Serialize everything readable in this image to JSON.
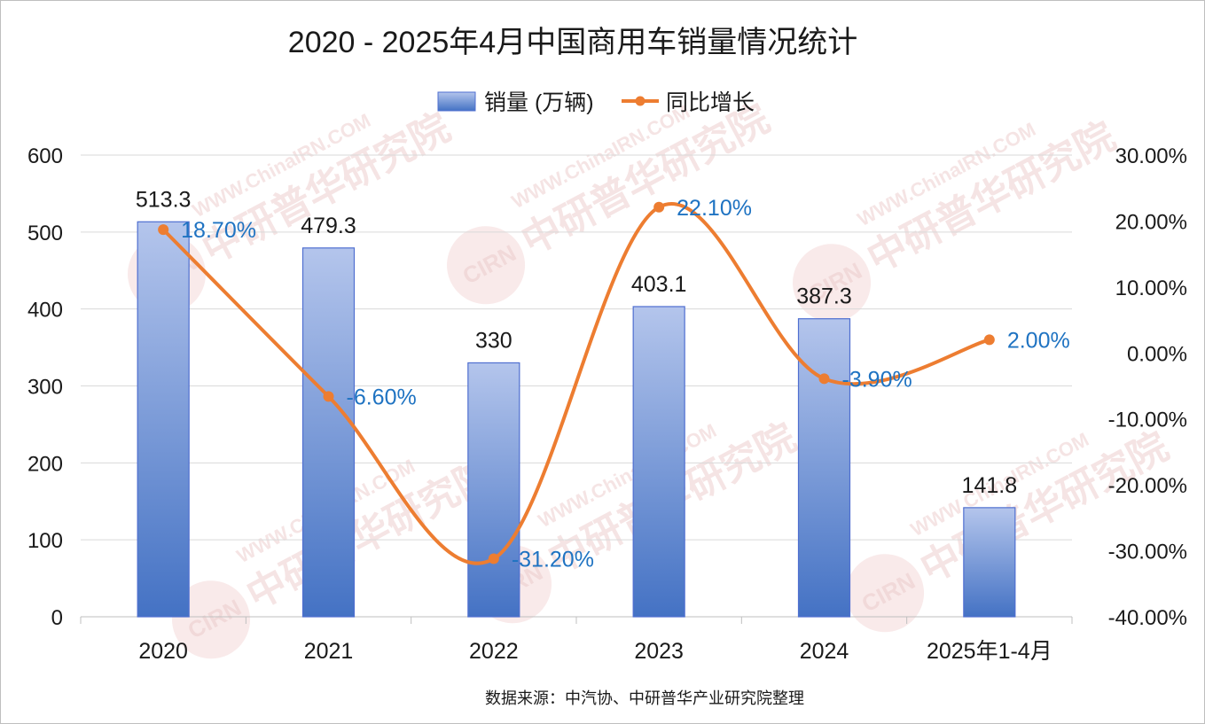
{
  "title": "2020 - 2025年4月中国商用车销量情况统计",
  "source": "数据来源：中汽协、中研普华产业研究院整理",
  "colors": {
    "bar_top": "#b4c5ec",
    "bar_bottom": "#4472c4",
    "bar_border": "#4f6fd0",
    "line": "#ed7d31",
    "pct_label": "#1f73c2"
  },
  "watermark": {
    "text": "中研普华研究院",
    "sub": "WWW.ChinaIRN.COM",
    "logo": "CIRN"
  },
  "chart_data": {
    "type": "bar",
    "categories": [
      "2020",
      "2021",
      "2022",
      "2023",
      "2024",
      "2025年1-4月"
    ],
    "series": [
      {
        "name": "销量 (万辆)",
        "type": "bar",
        "axis": "left",
        "values": [
          513.3,
          479.3,
          330,
          403.1,
          387.3,
          141.8
        ],
        "labels": [
          "513.3",
          "479.3",
          "330",
          "403.1",
          "387.3",
          "141.8"
        ]
      },
      {
        "name": "同比增长",
        "type": "line",
        "smooth": true,
        "axis": "right",
        "values": [
          18.7,
          -6.6,
          -31.2,
          22.1,
          -3.9,
          2.0
        ],
        "labels": [
          "18.70%",
          "-6.60%",
          "-31.20%",
          "22.10%",
          "-3.90%",
          "2.00%"
        ]
      }
    ],
    "y_left": {
      "min": 0,
      "max": 600,
      "ticks": [
        "0",
        "100",
        "200",
        "300",
        "400",
        "500",
        "600"
      ]
    },
    "y_right": {
      "min": -40,
      "max": 30,
      "ticks": [
        "-40.00%",
        "-30.00%",
        "-20.00%",
        "-10.00%",
        "0.00%",
        "10.00%",
        "20.00%",
        "30.00%"
      ]
    },
    "legend_position": "top",
    "grid": true
  }
}
